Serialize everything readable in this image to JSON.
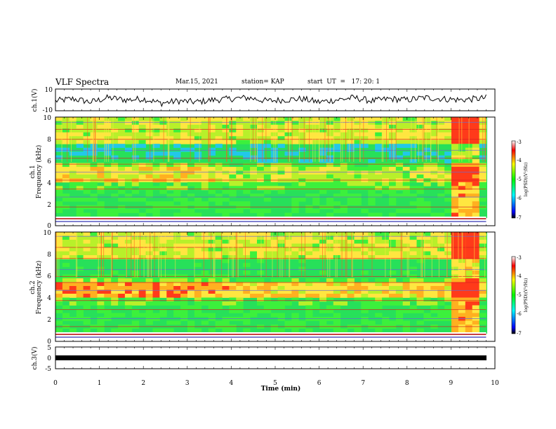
{
  "header": {
    "title": "VLF Spectra",
    "date": "Mar.15, 2021",
    "station": "station= KAP",
    "start": "start  UT  =   17: 20: 1"
  },
  "chart_data": [
    {
      "type": "line",
      "panel": "ch1-waveform",
      "ylabel": "ch.1(V)",
      "ylim": [
        -10,
        10
      ],
      "yticks": [
        10,
        -10
      ],
      "xlim": [
        0,
        9.8
      ],
      "x": [
        0.0,
        0.4,
        0.8,
        1.2,
        1.6,
        2.0,
        2.4,
        2.8,
        3.2,
        3.6,
        4.0,
        4.4,
        4.8,
        5.2,
        5.6,
        6.0,
        6.4,
        6.8,
        7.2,
        7.6,
        8.0,
        8.4,
        8.8,
        9.2,
        9.6,
        9.8
      ],
      "values": [
        -1,
        1,
        -2,
        2,
        0,
        1,
        -3,
        -1,
        -2,
        0,
        1,
        2,
        -1,
        0,
        1,
        -2,
        0,
        2,
        -1,
        1,
        0,
        2,
        1,
        0,
        1,
        2
      ],
      "color": "#000000"
    },
    {
      "type": "heatmap",
      "panel": "ch1-spectrogram",
      "ylabel": "ch.1\nFrequency (kHz)",
      "ylim": [
        0,
        10
      ],
      "yticks": [
        0,
        2,
        4,
        6,
        8,
        10
      ],
      "xlim": [
        0,
        9.8
      ],
      "colorbar": {
        "label": "log(PSD)(V²/Hz)",
        "range": [
          -7,
          -3
        ],
        "ticks": [
          -3,
          -4,
          -5,
          -6,
          -7
        ]
      }
    },
    {
      "type": "heatmap",
      "panel": "ch2-spectrogram",
      "ylabel": "ch.2\nFrequency (kHz)",
      "ylim": [
        0,
        10
      ],
      "yticks": [
        0,
        2,
        4,
        6,
        8,
        10
      ],
      "xlim": [
        0,
        9.8
      ],
      "colorbar": {
        "label": "log(PSD)(V²/Hz)",
        "range": [
          -7,
          -3
        ],
        "ticks": [
          -3,
          -4,
          -5,
          -6,
          -7
        ]
      }
    },
    {
      "type": "line",
      "panel": "ch3-waveform",
      "ylabel": "ch.3(V)",
      "ylim": [
        -5,
        5
      ],
      "yticks": [
        5,
        0,
        -5
      ],
      "xlim": [
        0,
        9.8
      ],
      "x": [
        0,
        9.8
      ],
      "values": [
        -1.5,
        -1.5
      ],
      "color": "#000000"
    }
  ],
  "x_axis": {
    "label": "Time (min)",
    "ticks": [
      "0",
      "1",
      "2",
      "3",
      "4",
      "5",
      "6",
      "7",
      "8",
      "9",
      "10"
    ]
  }
}
